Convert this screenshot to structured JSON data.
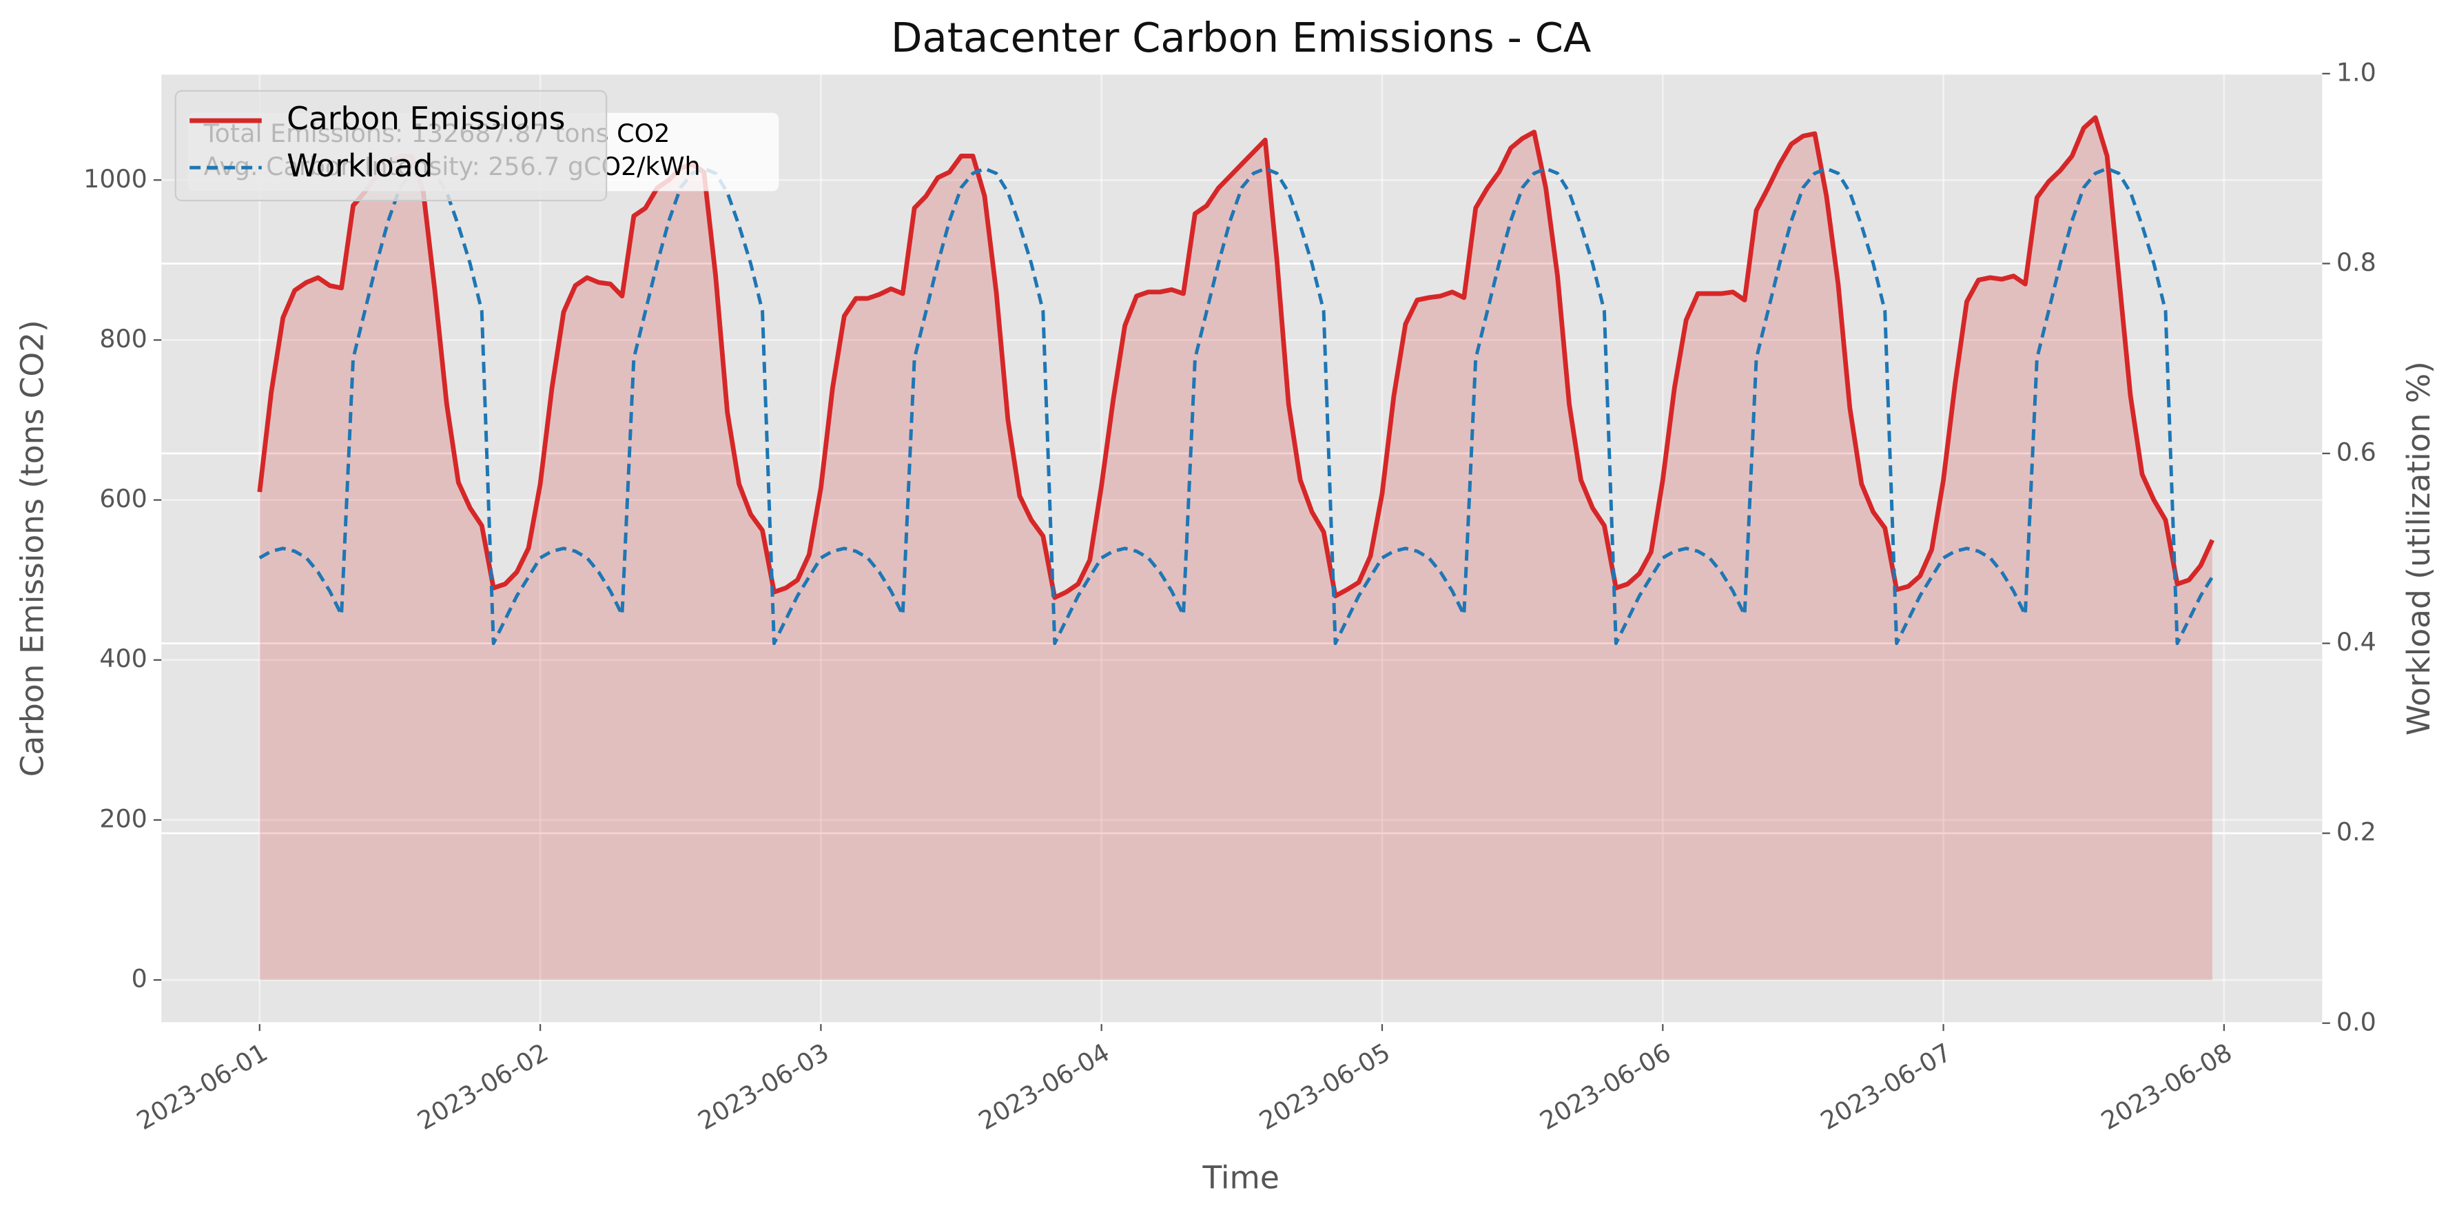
{
  "chart_data": {
    "type": "line",
    "title": "Datacenter Carbon Emissions - CA",
    "xlabel": "Time",
    "ylabel": "Carbon Emissions (tons CO2)",
    "y2label": "Workload (utilization %)",
    "annotations": [
      "Total Emissions: 132687.87 tons CO2",
      "Avg. Carbon Intensity: 256.7 gCO2/kWh"
    ],
    "legend": "upper left",
    "grid": true,
    "fill_under": "Carbon Emissions",
    "xlim": [
      -8.4,
      176.4
    ],
    "xticks": [
      {
        "value": 0,
        "label": "2023-06-01"
      },
      {
        "value": 24,
        "label": "2023-06-02"
      },
      {
        "value": 48,
        "label": "2023-06-03"
      },
      {
        "value": 72,
        "label": "2023-06-04"
      },
      {
        "value": 96,
        "label": "2023-06-05"
      },
      {
        "value": 120,
        "label": "2023-06-06"
      },
      {
        "value": 144,
        "label": "2023-06-07"
      },
      {
        "value": 168,
        "label": "2023-06-08"
      }
    ],
    "ylim": [
      -54,
      1133
    ],
    "yticks": [
      0,
      200,
      400,
      600,
      800,
      1000
    ],
    "y2lim": [
      0,
      1
    ],
    "y2ticks": [
      {
        "value": 0,
        "label": "0.0"
      },
      0.2,
      0.4,
      0.6,
      0.8,
      {
        "value": 1,
        "label": "1.0"
      }
    ],
    "x": [
      0,
      1,
      2,
      3,
      4,
      5,
      6,
      7,
      8,
      9,
      10,
      11,
      12,
      13,
      14,
      15,
      16,
      17,
      18,
      19,
      20,
      21,
      22,
      23,
      24,
      25,
      26,
      27,
      28,
      29,
      30,
      31,
      32,
      33,
      34,
      35,
      36,
      37,
      38,
      39,
      40,
      41,
      42,
      43,
      44,
      45,
      46,
      47,
      48,
      49,
      50,
      51,
      52,
      53,
      54,
      55,
      56,
      57,
      58,
      59,
      60,
      61,
      62,
      63,
      64,
      65,
      66,
      67,
      68,
      69,
      70,
      71,
      72,
      73,
      74,
      75,
      76,
      77,
      78,
      79,
      80,
      81,
      82,
      83,
      84,
      85,
      86,
      87,
      88,
      89,
      90,
      91,
      92,
      93,
      94,
      95,
      96,
      97,
      98,
      99,
      100,
      101,
      102,
      103,
      104,
      105,
      106,
      107,
      108,
      109,
      110,
      111,
      112,
      113,
      114,
      115,
      116,
      117,
      118,
      119,
      120,
      121,
      122,
      123,
      124,
      125,
      126,
      127,
      128,
      129,
      130,
      131,
      132,
      133,
      134,
      135,
      136,
      137,
      138,
      139,
      140,
      141,
      142,
      143,
      144,
      145,
      146,
      147,
      148,
      149,
      150,
      151,
      152,
      153,
      154,
      155,
      156,
      157,
      158,
      159,
      160,
      161,
      162,
      163,
      164,
      165,
      166,
      167
    ],
    "series": [
      {
        "name": "Carbon Emissions",
        "color": "#d62728",
        "dash": false,
        "values": [
          610,
          735,
          828,
          862,
          872,
          878,
          868,
          865,
          968,
          985,
          1005,
          1020,
          1030,
          1030,
          985,
          860,
          720,
          622,
          590,
          568,
          490,
          495,
          510,
          540,
          620,
          740,
          835,
          868,
          878,
          872,
          870,
          855,
          955,
          965,
          990,
          1000,
          1015,
          1020,
          1010,
          880,
          710,
          620,
          582,
          562,
          485,
          490,
          500,
          532,
          615,
          740,
          830,
          852,
          852,
          857,
          864,
          858,
          965,
          980,
          1003,
          1010,
          1030,
          1030,
          980,
          860,
          700,
          605,
          575,
          555,
          478,
          485,
          495,
          525,
          618,
          725,
          818,
          855,
          860,
          860,
          863,
          858,
          958,
          968,
          990,
          1005,
          1020,
          1035,
          1050,
          900,
          720,
          625,
          585,
          560,
          480,
          488,
          497,
          530,
          608,
          730,
          820,
          850,
          853,
          855,
          860,
          853,
          965,
          990,
          1010,
          1040,
          1052,
          1060,
          990,
          880,
          720,
          625,
          590,
          568,
          490,
          495,
          508,
          535,
          625,
          740,
          825,
          858,
          858,
          858,
          860,
          850,
          962,
          990,
          1020,
          1045,
          1055,
          1058,
          980,
          870,
          715,
          620,
          585,
          565,
          488,
          492,
          505,
          538,
          625,
          745,
          848,
          875,
          878,
          876,
          880,
          870,
          978,
          998,
          1012,
          1030,
          1065,
          1078,
          1030,
          880,
          730,
          632,
          600,
          575,
          495,
          500,
          518,
          550
        ]
      },
      {
        "name": "Workload",
        "color": "#1f77b4",
        "dash": true,
        "axis": "y2",
        "values": [
          0.49,
          0.497,
          0.5,
          0.497,
          0.49,
          0.475,
          0.455,
          0.43,
          0.7,
          0.75,
          0.8,
          0.845,
          0.88,
          0.895,
          0.9,
          0.895,
          0.875,
          0.84,
          0.8,
          0.75,
          0.4,
          0.425,
          0.45,
          0.47,
          0.49,
          0.497,
          0.5,
          0.497,
          0.49,
          0.475,
          0.455,
          0.43,
          0.7,
          0.75,
          0.8,
          0.845,
          0.88,
          0.895,
          0.9,
          0.895,
          0.875,
          0.84,
          0.8,
          0.75,
          0.4,
          0.425,
          0.45,
          0.47,
          0.49,
          0.497,
          0.5,
          0.497,
          0.49,
          0.475,
          0.455,
          0.43,
          0.7,
          0.75,
          0.8,
          0.845,
          0.88,
          0.895,
          0.9,
          0.895,
          0.875,
          0.84,
          0.8,
          0.75,
          0.4,
          0.425,
          0.45,
          0.47,
          0.49,
          0.497,
          0.5,
          0.497,
          0.49,
          0.475,
          0.455,
          0.43,
          0.7,
          0.75,
          0.8,
          0.845,
          0.88,
          0.895,
          0.9,
          0.895,
          0.875,
          0.84,
          0.8,
          0.75,
          0.4,
          0.425,
          0.45,
          0.47,
          0.49,
          0.497,
          0.5,
          0.497,
          0.49,
          0.475,
          0.455,
          0.43,
          0.7,
          0.75,
          0.8,
          0.845,
          0.88,
          0.895,
          0.9,
          0.895,
          0.875,
          0.84,
          0.8,
          0.75,
          0.4,
          0.425,
          0.45,
          0.47,
          0.49,
          0.497,
          0.5,
          0.497,
          0.49,
          0.475,
          0.455,
          0.43,
          0.7,
          0.75,
          0.8,
          0.845,
          0.88,
          0.895,
          0.9,
          0.895,
          0.875,
          0.84,
          0.8,
          0.75,
          0.4,
          0.425,
          0.45,
          0.47,
          0.49,
          0.497,
          0.5,
          0.497,
          0.49,
          0.475,
          0.455,
          0.43,
          0.7,
          0.75,
          0.8,
          0.845,
          0.88,
          0.895,
          0.9,
          0.895,
          0.875,
          0.84,
          0.8,
          0.75,
          0.4,
          0.425,
          0.45,
          0.47
        ]
      }
    ]
  }
}
